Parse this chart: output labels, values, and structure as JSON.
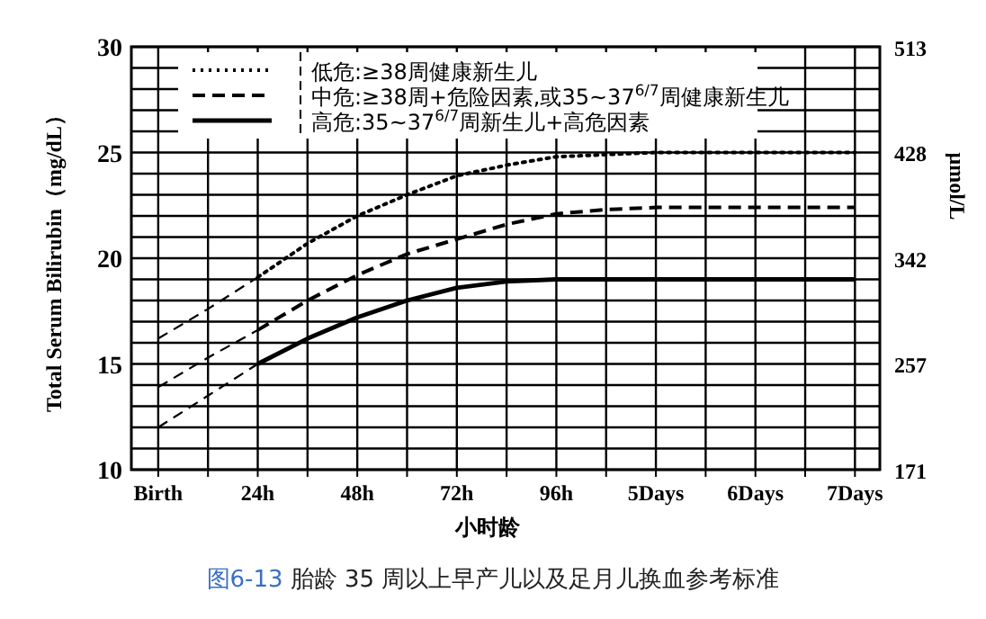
{
  "chart_data": {
    "type": "line",
    "xlabel": "小时龄",
    "ylabel": "Total Serum Bilirubin（mg/dL）",
    "y2label": "μmol/L",
    "annotations": [
      "图6-13 胎龄 35 周以上早产儿以及足月儿换血参考标准"
    ],
    "categories": [
      "Birth",
      null,
      "24h",
      null,
      "48h",
      null,
      "72h",
      null,
      "96h",
      null,
      "5Days",
      null,
      "6Days",
      null,
      "7Days"
    ],
    "ylim": [
      10,
      30
    ],
    "yticks": [
      10,
      {
        "value": 11,
        "label": null
      },
      {
        "value": 12,
        "label": null
      },
      {
        "value": 13,
        "label": null
      },
      {
        "value": 14,
        "label": null
      },
      15,
      {
        "value": 16,
        "label": null
      },
      {
        "value": 17,
        "label": null
      },
      {
        "value": 18,
        "label": null
      },
      {
        "value": 19,
        "label": null
      },
      20,
      {
        "value": 21,
        "label": null
      },
      {
        "value": 22,
        "label": null
      },
      {
        "value": 23,
        "label": null
      },
      {
        "value": 24,
        "label": null
      },
      25,
      {
        "value": 26,
        "label": null
      },
      {
        "value": 27,
        "label": null
      },
      {
        "value": 28,
        "label": null
      },
      {
        "value": 29,
        "label": null
      },
      30
    ],
    "y2lim": [
      171,
      513
    ],
    "y2ticks": [
      171,
      257,
      342,
      428,
      513
    ],
    "grid": true,
    "legend": "top left",
    "marker": "none",
    "series": [
      {
        "name": "低危:≥38周健康新生儿",
        "color": "#000000",
        "line_style": "dotted",
        "values": [
          null,
          null,
          19.1,
          20.7,
          22.0,
          23.0,
          23.9,
          24.4,
          24.8,
          24.9,
          25.0,
          25.0,
          25.0,
          25.0,
          25.0
        ]
      },
      {
        "name": "中危:≥38周+危险因素,或35~37$^{6/7}$周健康新生儿",
        "color": "#000000",
        "line_style": "dashed",
        "values": [
          null,
          null,
          16.6,
          18.0,
          19.2,
          20.2,
          20.9,
          21.6,
          22.1,
          22.3,
          22.4,
          22.4,
          22.4,
          22.4,
          22.4
        ]
      },
      {
        "name": "高危:35~37$^{6/7}$周新生儿+高危因素",
        "color": "#000000",
        "line_style": "solid",
        "values": [
          null,
          null,
          15.0,
          16.2,
          17.2,
          18.0,
          18.6,
          18.9,
          19.0,
          19.0,
          19.0,
          19.0,
          19.0,
          19.0,
          19.0
        ]
      },
      {
        "color": "#000000",
        "line_style": "dashed",
        "values": [
          16.2,
          17.6,
          19.1,
          null,
          null,
          null,
          null,
          null,
          null,
          null,
          null,
          null,
          null,
          null,
          null
        ]
      },
      {
        "color": "#000000",
        "line_style": "dashed",
        "values": [
          13.9,
          15.3,
          16.6,
          null,
          null,
          null,
          null,
          null,
          null,
          null,
          null,
          null,
          null,
          null,
          null
        ]
      },
      {
        "color": "#000000",
        "line_style": "dashed",
        "values": [
          12.0,
          13.5,
          15.0,
          null,
          null,
          null,
          null,
          null,
          null,
          null,
          null,
          null,
          null,
          null,
          null
        ]
      }
    ]
  }
}
